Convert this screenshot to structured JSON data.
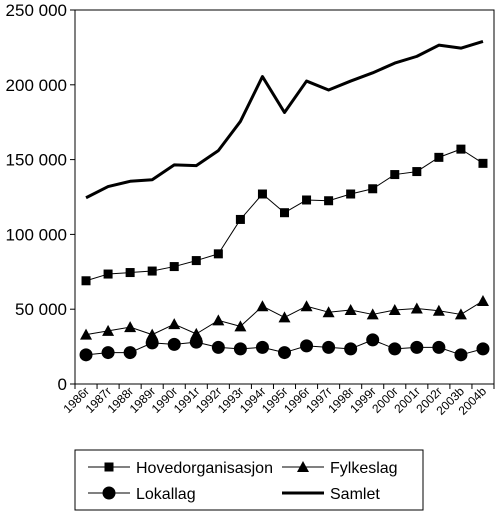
{
  "chart_data": {
    "type": "line",
    "title": "",
    "xlabel": "",
    "ylabel": "",
    "ylim": [
      0,
      250000
    ],
    "yticks": [
      0,
      50000,
      100000,
      150000,
      200000,
      250000
    ],
    "ytick_labels": [
      "0",
      "50 000",
      "100 000",
      "150 000",
      "200 000",
      "250 000"
    ],
    "grid": false,
    "legend_position": "bottom",
    "categories": [
      "1986r",
      "1987r",
      "1988r",
      "1989r",
      "1990r",
      "1991r",
      "1992r",
      "1993r",
      "1994r",
      "1995r",
      "1996r",
      "1997r",
      "1998r",
      "1999r",
      "2000r",
      "2001r",
      "2002r",
      "2003b",
      "2004b"
    ],
    "series": [
      {
        "name": "Hovedorganisasjon",
        "marker": "square",
        "values": [
          69000,
          73500,
          74500,
          75500,
          78500,
          82500,
          87000,
          110000,
          127000,
          114500,
          123000,
          122500,
          127000,
          130500,
          140000,
          142000,
          151500,
          157000,
          147500
        ]
      },
      {
        "name": "Fylkeslag",
        "marker": "triangle",
        "values": [
          33000,
          35500,
          38000,
          33000,
          40000,
          33500,
          42500,
          38500,
          52000,
          44500,
          52000,
          48000,
          49500,
          46500,
          49500,
          50500,
          49000,
          46500,
          55500
        ]
      },
      {
        "name": "Lokallag",
        "marker": "circle",
        "values": [
          19500,
          21000,
          21000,
          27500,
          26500,
          28000,
          24500,
          23500,
          24500,
          21000,
          25500,
          24500,
          23500,
          29500,
          23500,
          24500,
          24500,
          19500,
          23500
        ]
      },
      {
        "name": "Samlet",
        "marker": "none",
        "values": [
          124500,
          132000,
          135500,
          136500,
          146500,
          146000,
          156000,
          175500,
          205500,
          181500,
          202500,
          196500,
          202500,
          208000,
          214500,
          219000,
          226500,
          224500,
          229000
        ]
      }
    ],
    "colors": {
      "line": "#000000",
      "background": "#ffffff"
    }
  }
}
